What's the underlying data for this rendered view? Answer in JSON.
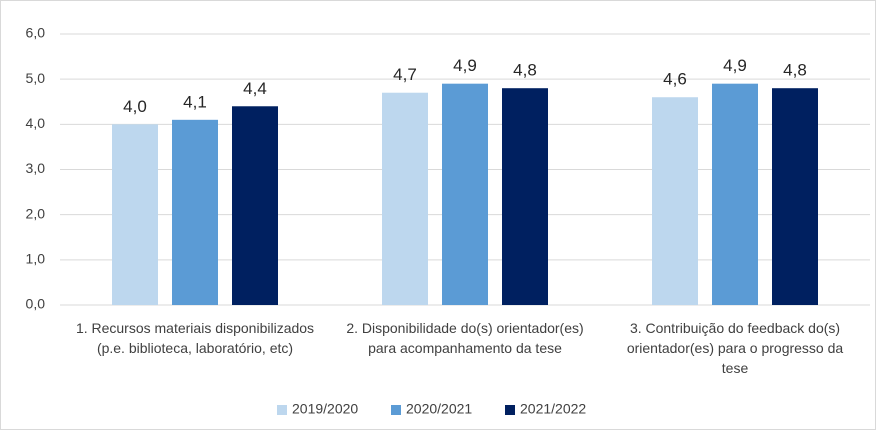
{
  "chart_data": {
    "type": "bar",
    "categories": [
      "1. Recursos materiais disponibilizados (p.e. biblioteca, laboratório, etc)",
      "2. Disponibilidade do(s) orientador(es) para acompanhamento da tese",
      "3. Contribuição do feedback do(s) orientador(es) para o progresso da tese"
    ],
    "series": [
      {
        "name": "2019/2020",
        "color": "#bdd7ee",
        "values": [
          4.0,
          4.7,
          4.6
        ],
        "value_labels": [
          "4,0",
          "4,7",
          "4,6"
        ]
      },
      {
        "name": "2020/2021",
        "color": "#5b9bd5",
        "values": [
          4.1,
          4.9,
          4.9
        ],
        "value_labels": [
          "4,1",
          "4,9",
          "4,9"
        ]
      },
      {
        "name": "2021/2022",
        "color": "#002060",
        "values": [
          4.4,
          4.8,
          4.8
        ],
        "value_labels": [
          "4,4",
          "4,8",
          "4,8"
        ]
      }
    ],
    "ylim": [
      0,
      6
    ],
    "yticks": [
      {
        "value": 0,
        "label": "0,0"
      },
      {
        "value": 1,
        "label": "1,0"
      },
      {
        "value": 2,
        "label": "2,0"
      },
      {
        "value": 3,
        "label": "3,0"
      },
      {
        "value": 4,
        "label": "4,0"
      },
      {
        "value": 5,
        "label": "5,0"
      },
      {
        "value": 6,
        "label": "6,0"
      }
    ],
    "grid": true,
    "legend": "bottom"
  }
}
